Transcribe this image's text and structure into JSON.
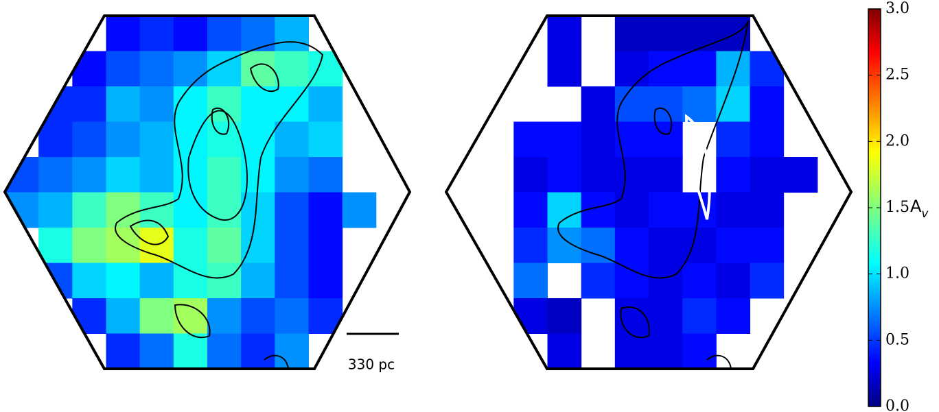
{
  "chart_data": {
    "type": "heatmap",
    "colormap": "jet",
    "clim": [
      0,
      3
    ],
    "cticks": [
      {
        "value": 0,
        "label": "0.0"
      },
      0.5,
      {
        "value": 1,
        "label": "1.0"
      },
      1.5,
      {
        "value": 2,
        "label": "2.0"
      },
      2.5,
      {
        "value": 3,
        "label": "3.0"
      }
    ],
    "colorbar_label": "A",
    "colorbar_label_sub": "v",
    "scale_bar": "330 pc",
    "panels": [
      {
        "values": [
          [
            null,
            null,
            null,
            0.4,
            0.5,
            0.4,
            0.6,
            0.7,
            0.9,
            null,
            null,
            null
          ],
          [
            null,
            null,
            0.4,
            0.6,
            0.7,
            0.8,
            1.0,
            1.4,
            1.3,
            1.2,
            null,
            null
          ],
          [
            null,
            0.5,
            0.5,
            0.9,
            0.8,
            1.1,
            1.3,
            1.1,
            1.1,
            0.9,
            null,
            null
          ],
          [
            null,
            0.5,
            0.6,
            0.8,
            0.9,
            1.1,
            1.2,
            1.1,
            0.9,
            1.0,
            null,
            null
          ],
          [
            0.6,
            0.7,
            0.8,
            1.0,
            0.9,
            1.1,
            1.3,
            1.1,
            0.8,
            0.7,
            null,
            null
          ],
          [
            0.8,
            0.9,
            1.3,
            1.5,
            1.3,
            1.1,
            1.3,
            1.0,
            0.6,
            0.4,
            0.8,
            null
          ],
          [
            null,
            1.2,
            1.5,
            1.6,
            1.8,
            1.2,
            1.4,
            1.0,
            0.6,
            0.4,
            null,
            null
          ],
          [
            null,
            0.6,
            1.0,
            1.1,
            0.9,
            1.2,
            1.3,
            0.9,
            0.6,
            0.4,
            null,
            null
          ],
          [
            null,
            null,
            0.5,
            0.9,
            1.5,
            1.6,
            0.8,
            0.6,
            0.7,
            0.5,
            null,
            null
          ],
          [
            null,
            null,
            null,
            0.5,
            0.7,
            1.2,
            0.7,
            0.5,
            0.8,
            null,
            null,
            null
          ]
        ]
      },
      {
        "values": [
          [
            null,
            null,
            null,
            0.3,
            null,
            0.2,
            0.2,
            0.2,
            0.2,
            null,
            null,
            null
          ],
          [
            null,
            null,
            null,
            0.3,
            null,
            0.3,
            0.4,
            0.4,
            0.9,
            0.5,
            null,
            null
          ],
          [
            null,
            null,
            null,
            null,
            0.3,
            0.6,
            0.6,
            0.7,
            1.0,
            0.4,
            null,
            null
          ],
          [
            null,
            null,
            0.4,
            0.4,
            0.3,
            0.4,
            0.4,
            null,
            0.5,
            0.4,
            null,
            null
          ],
          [
            null,
            null,
            0.3,
            0.4,
            0.3,
            0.3,
            0.3,
            null,
            0.4,
            0.3,
            0.3,
            null
          ],
          [
            null,
            null,
            0.4,
            1.0,
            0.4,
            0.3,
            0.4,
            0.4,
            0.3,
            0.3,
            null,
            null
          ],
          [
            null,
            null,
            0.5,
            0.8,
            0.7,
            0.4,
            0.3,
            0.3,
            0.4,
            0.4,
            null,
            null
          ],
          [
            null,
            null,
            0.7,
            null,
            0.5,
            0.4,
            0.3,
            0.4,
            0.3,
            0.5,
            null,
            null
          ],
          [
            null,
            null,
            0.3,
            0.2,
            null,
            0.3,
            0.3,
            0.5,
            0.4,
            null,
            null,
            null
          ],
          [
            null,
            null,
            null,
            0.3,
            null,
            0.3,
            0.3,
            0.4,
            null,
            null,
            null,
            null
          ]
        ]
      }
    ]
  }
}
